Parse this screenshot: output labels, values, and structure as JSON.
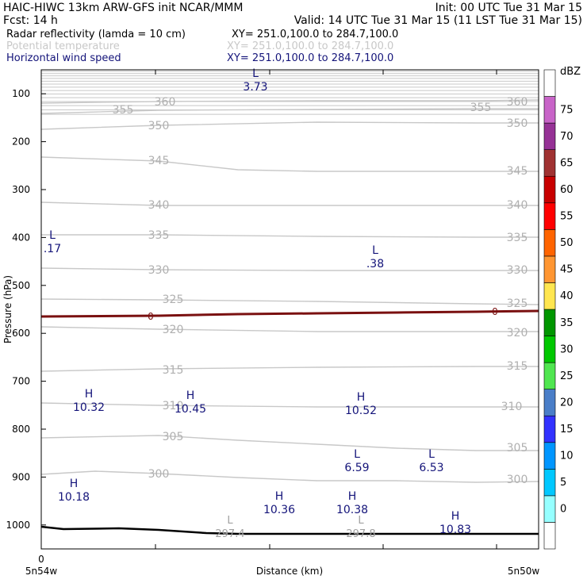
{
  "header": {
    "left1": "HAIC-HIWC 13km ARW-GFS init   NCAR/MMM",
    "right1": "Init: 00 UTC Tue 31 Mar 15",
    "left2": "Fcst:    14 h",
    "right2": "Valid: 14 UTC Tue 31 Mar 15 (11 LST Tue 31 Mar 15)",
    "fields": [
      {
        "name": "Radar reflectivity (lamda = 10 cm)",
        "xy": "XY= 251.0,100.0 to 284.7,100.0",
        "color": "#000000"
      },
      {
        "name": "Potential temperature",
        "xy": "XY= 251.0,100.0 to 284.7,100.0",
        "color": "#c8c8c8"
      },
      {
        "name": "Horizontal wind speed",
        "xy": "XY= 251.0,100.0 to 284.7,100.0",
        "color": "#14147a"
      }
    ]
  },
  "chart_data": {
    "type": "line",
    "xlabel": "Distance (km)",
    "ylabel": "Pressure (hPa)",
    "y_ticks": [
      100,
      200,
      300,
      400,
      500,
      600,
      700,
      800,
      900,
      1000
    ],
    "ylim": [
      1050,
      50
    ],
    "x_start_label": "5n54w",
    "x_end_label": "5n50w",
    "x_zero_label": "0",
    "theta_levels": [
      {
        "value": "360",
        "left": "360",
        "right": "360"
      },
      {
        "value": "355",
        "left": "355",
        "right": "355"
      },
      {
        "value": "350",
        "left": "350",
        "right": "350"
      },
      {
        "value": "345",
        "left": "345",
        "right": "345"
      },
      {
        "value": "340",
        "left": "340",
        "right": "340"
      },
      {
        "value": "335",
        "left": "335",
        "right": "335"
      },
      {
        "value": "330",
        "left": "330",
        "right": "330"
      },
      {
        "value": "325",
        "left": "325",
        "right": "325"
      },
      {
        "value": "320",
        "left": "320",
        "right": "320"
      },
      {
        "value": "315",
        "left": "315",
        "right": "315"
      },
      {
        "value": "310",
        "left": "310",
        "right": "310"
      },
      {
        "value": "305",
        "left": "305",
        "right": "305"
      },
      {
        "value": "300",
        "left": "300",
        "right": "300"
      }
    ],
    "freezing_label": "0",
    "wind_extrema": [
      {
        "type": "L",
        "value": "3.73"
      },
      {
        "type": "L",
        "value": ".17"
      },
      {
        "type": "L",
        "value": ".38"
      },
      {
        "type": "H",
        "value": "10.32"
      },
      {
        "type": "H",
        "value": "10.45"
      },
      {
        "type": "H",
        "value": "10.52"
      },
      {
        "type": "L",
        "value": "6.59"
      },
      {
        "type": "L",
        "value": "6.53"
      },
      {
        "type": "H",
        "value": "10.18"
      },
      {
        "type": "H",
        "value": "10.36"
      },
      {
        "type": "H",
        "value": "10.38"
      },
      {
        "type": "H",
        "value": "10.83"
      }
    ],
    "theta_extrema": [
      {
        "type": "L",
        "value": "297.4"
      },
      {
        "type": "L",
        "value": "297.8"
      }
    ],
    "colorbar": {
      "unit": "dBZ",
      "levels": [
        "0",
        "5",
        "10",
        "15",
        "20",
        "25",
        "30",
        "35",
        "40",
        "45",
        "50",
        "55",
        "60",
        "65",
        "70",
        "75"
      ],
      "colors": [
        "#ffffff",
        "#96ffff",
        "#00c8ff",
        "#0096ff",
        "#3232ff",
        "#4a7ec8",
        "#50e650",
        "#00c800",
        "#009600",
        "#ffe650",
        "#ff9632",
        "#ff6400",
        "#ff0000",
        "#c80000",
        "#a03232",
        "#963296",
        "#c864c8",
        "#ffffff"
      ]
    }
  }
}
